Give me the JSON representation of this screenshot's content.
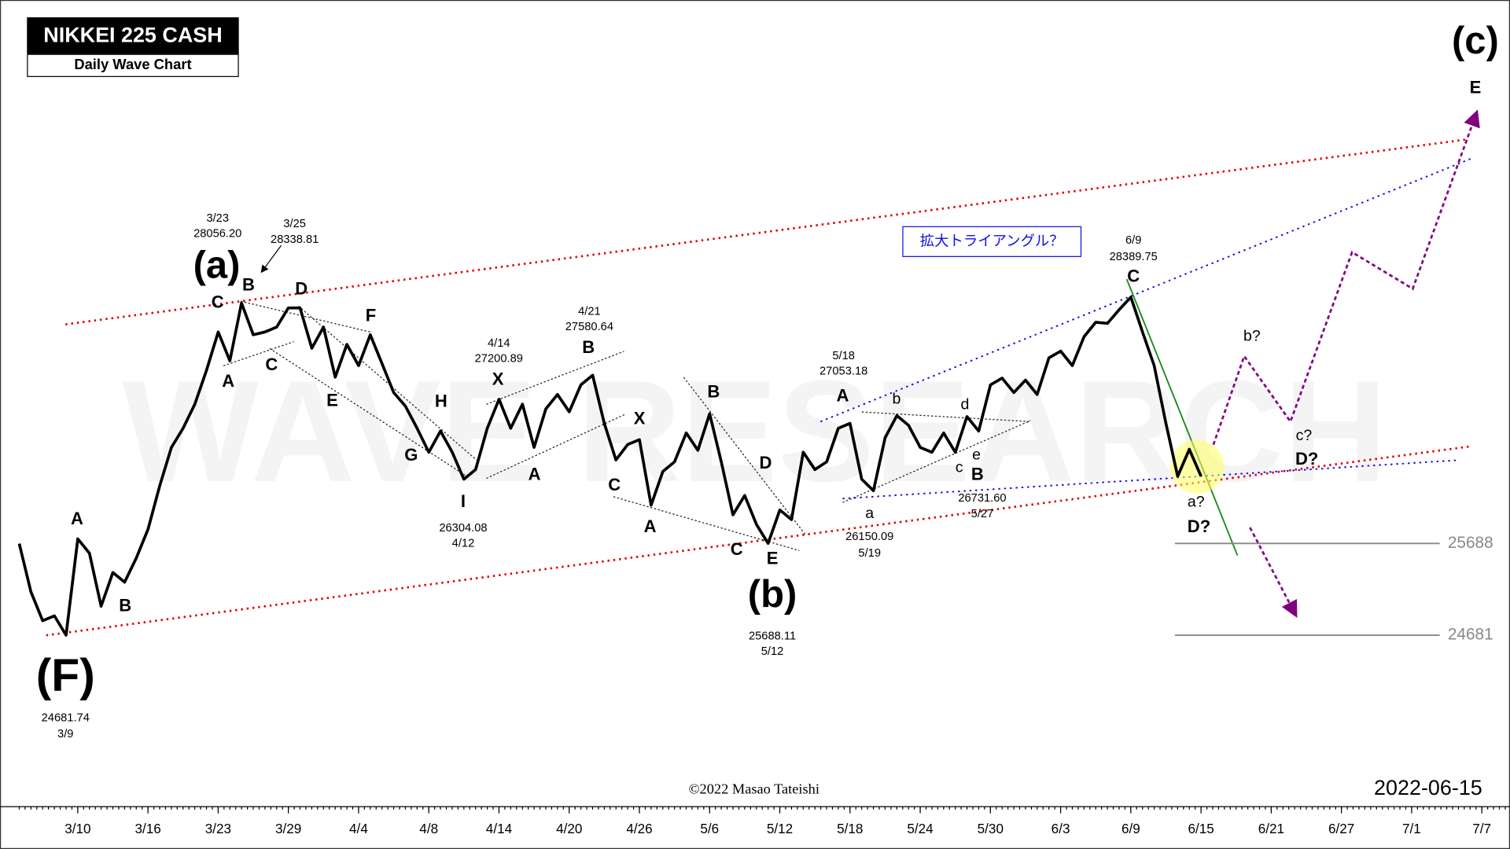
{
  "chart_data": {
    "type": "line",
    "title": "NIKKEI 225 CASH",
    "subtitle": "Daily Wave Chart",
    "categories": [
      null,
      null,
      null,
      null,
      null,
      "3/10",
      null,
      null,
      null,
      null,
      null,
      "3/16",
      null,
      null,
      null,
      null,
      null,
      "3/23",
      null,
      null,
      null,
      null,
      null,
      "3/29",
      null,
      null,
      null,
      null,
      null,
      "4/4",
      null,
      null,
      null,
      null,
      null,
      "4/8",
      null,
      null,
      null,
      null,
      null,
      "4/14",
      null,
      null,
      null,
      null,
      null,
      "4/20",
      null,
      null,
      null,
      null,
      null,
      "4/26",
      null,
      null,
      null,
      null,
      null,
      "5/6",
      null,
      null,
      null,
      null,
      null,
      "5/12",
      null,
      null,
      null,
      null,
      null,
      "5/18",
      null,
      null,
      null,
      null,
      null,
      "5/24",
      null,
      null,
      null,
      null,
      null,
      "5/30",
      null,
      null,
      null,
      null,
      null,
      "6/3",
      null,
      null,
      null,
      null,
      null,
      "6/9",
      null,
      null,
      null,
      null,
      null,
      "6/15",
      null,
      null,
      null,
      null,
      null,
      "6/21",
      null,
      null,
      null,
      null,
      null,
      "6/27",
      null,
      null,
      null,
      null,
      null,
      "7/1",
      null,
      null,
      null,
      null,
      null,
      "7/7",
      null,
      null
    ],
    "values": [
      25685,
      25157,
      24840,
      24893,
      24682,
      25738,
      25580,
      24999,
      25368,
      25263,
      25527,
      25843,
      26318,
      26741,
      26952,
      27216,
      27586,
      28008,
      27692,
      28325,
      27977,
      28008,
      28061,
      28272,
      28272,
      27829,
      28061,
      27512,
      27871,
      27639,
      27977,
      27660,
      27343,
      27195,
      26952,
      26688,
      26921,
      26688,
      26393,
      26498,
      26952,
      27269,
      26952,
      27216,
      26741,
      27164,
      27322,
      27132,
      27428,
      27533,
      27005,
      26604,
      26773,
      26826,
      26108,
      26477,
      26583,
      26900,
      26710,
      27111,
      26583,
      26002,
      26213,
      25896,
      25688,
      26055,
      25949,
      26688,
      26498,
      26583,
      26952,
      27005,
      26393,
      26266,
      26847,
      27090,
      26984,
      26741,
      26688,
      26900,
      26688,
      27079,
      26921,
      27428,
      27502,
      27343,
      27480,
      27322,
      27723,
      27797,
      27639,
      27956,
      28114,
      28103,
      28251,
      28390,
      28008,
      27639,
      27005,
      26424,
      26720,
      26424,
      null,
      null,
      null,
      null,
      null,
      null,
      null,
      null,
      null,
      null,
      null,
      null,
      null,
      null,
      null,
      null,
      null,
      null,
      null,
      null,
      null,
      null,
      null,
      null,
      null,
      null
    ],
    "color": "#000000",
    "ylim": [
      22800,
      31650
    ],
    "levels": [
      25688,
      24681
    ],
    "annotations": [
      "(F)",
      "(a)",
      "(b)",
      "(c)",
      "A",
      "B",
      "C",
      "B",
      "A",
      "C",
      "D",
      "E",
      "F",
      "G",
      "H",
      "I",
      "X",
      "A",
      "B",
      "X",
      "C",
      "A",
      "B",
      "D",
      "C",
      "E",
      "A",
      "B",
      "C",
      "E",
      "D?",
      "D?",
      "a",
      "b",
      "c",
      "d",
      "e",
      "a?",
      "b?",
      "c?"
    ],
    "price_labels": [
      "3/23",
      "28056.20",
      "3/25",
      "28338.81",
      "4/14",
      "27200.89",
      "4/21",
      "27580.64",
      "26304.08",
      "4/12",
      "24681.74",
      "3/9",
      "25688.11",
      "5/12",
      "5/18",
      "27053.18",
      "26150.09",
      "5/19",
      "26731.60",
      "5/27",
      "6/9",
      "28389.75"
    ],
    "box_note": "拡大トライアングル？",
    "date": "2022-06-15",
    "copyright": "©2022 Masao Tateishi",
    "watermark": "WAVE RESEARCH"
  }
}
